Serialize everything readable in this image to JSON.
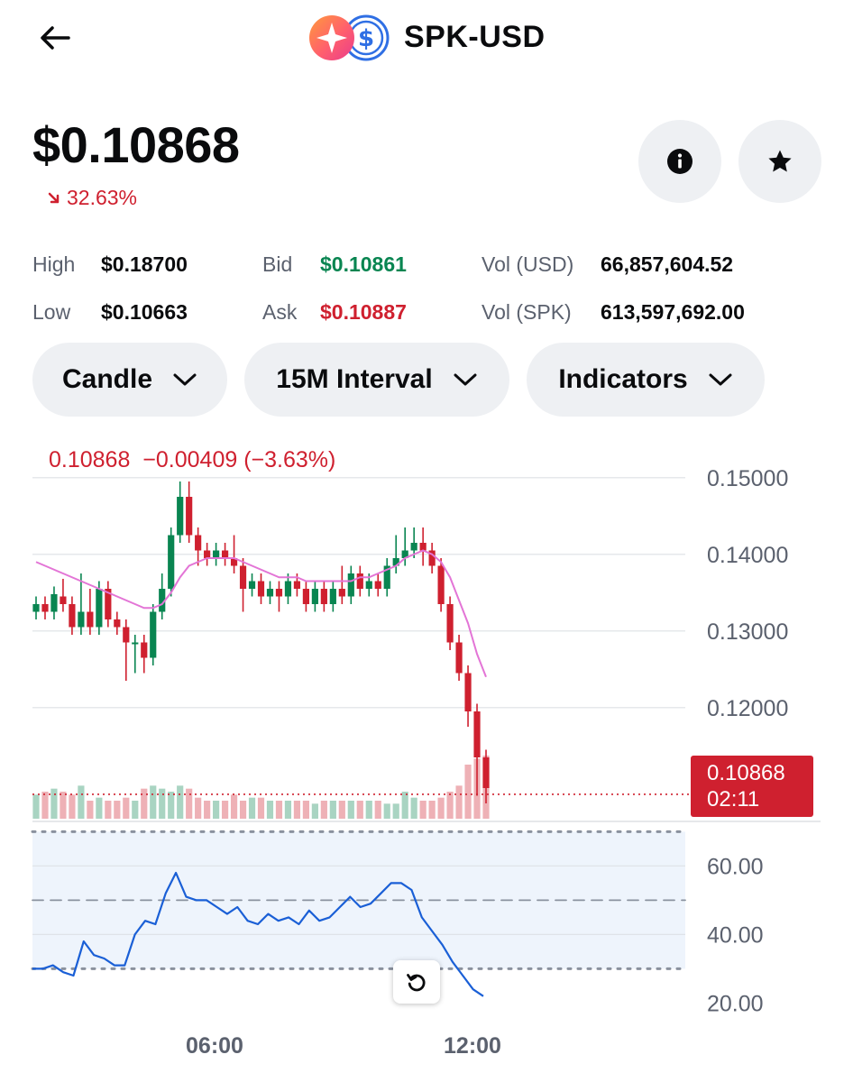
{
  "header": {
    "title": "SPK-USD",
    "back_icon": "arrow-left-icon",
    "coin_icons": [
      "spk-star-icon",
      "usdc-dollar-icon"
    ]
  },
  "summary": {
    "price": "$0.10868",
    "change": "32.63%",
    "change_direction": "down",
    "info_icon": "info-icon",
    "favorite_icon": "star-icon"
  },
  "stats": {
    "high_label": "High",
    "high_value": "$0.18700",
    "low_label": "Low",
    "low_value": "$0.10663",
    "bid_label": "Bid",
    "bid_value": "$0.10861",
    "ask_label": "Ask",
    "ask_value": "$0.10887",
    "vol_usd_label": "Vol (USD)",
    "vol_usd_value": "66,857,604.52",
    "vol_spk_label": "Vol (SPK)",
    "vol_spk_value": "613,597,692.00"
  },
  "controls": {
    "chart_type": "Candle",
    "interval": "15M Interval",
    "indicators": "Indicators"
  },
  "colors": {
    "up": "#098551",
    "down": "#cf202f",
    "ma_line": "#e375d6",
    "rsi_line": "#1a5fd6",
    "rsi_band": "#eef4fc"
  },
  "chart_data": [
    {
      "type": "candlestick",
      "ohlc_line": {
        "price": "0.10868",
        "change": "−0.00409",
        "percent": "(−3.63%)"
      },
      "y_ticks": [
        "0.15000",
        "0.14000",
        "0.13000",
        "0.12000"
      ],
      "ylim": [
        0.1055,
        0.1535
      ],
      "x_ticks": [
        "06:00",
        "12:00"
      ],
      "last_price_label": "0.10868",
      "countdown": "02:11",
      "candles": [
        [
          0.1325,
          0.1335,
          0.1315,
          0.1345
        ],
        [
          0.1335,
          0.1325,
          0.1315,
          0.1345
        ],
        [
          0.1325,
          0.1348,
          0.1315,
          0.1358
        ],
        [
          0.1345,
          0.1335,
          0.1325,
          0.1368
        ],
        [
          0.1335,
          0.1305,
          0.1295,
          0.1345
        ],
        [
          0.1305,
          0.1325,
          0.1295,
          0.1375
        ],
        [
          0.1325,
          0.1305,
          0.1295,
          0.1355
        ],
        [
          0.1305,
          0.1355,
          0.1295,
          0.1365
        ],
        [
          0.1355,
          0.1315,
          0.1305,
          0.1365
        ],
        [
          0.1315,
          0.1305,
          0.1295,
          0.1325
        ],
        [
          0.1305,
          0.1285,
          0.1235,
          0.1315
        ],
        [
          0.1285,
          0.1285,
          0.1245,
          0.1295
        ],
        [
          0.1285,
          0.1265,
          0.1245,
          0.1295
        ],
        [
          0.1265,
          0.1325,
          0.1255,
          0.1335
        ],
        [
          0.1325,
          0.1355,
          0.1315,
          0.1375
        ],
        [
          0.1355,
          0.1425,
          0.1345,
          0.1435
        ],
        [
          0.1425,
          0.1475,
          0.1415,
          0.1495
        ],
        [
          0.1475,
          0.1425,
          0.1415,
          0.1495
        ],
        [
          0.1425,
          0.1405,
          0.1385,
          0.1435
        ],
        [
          0.1405,
          0.1395,
          0.1385,
          0.1415
        ],
        [
          0.1395,
          0.1405,
          0.1385,
          0.1415
        ],
        [
          0.1405,
          0.1395,
          0.1385,
          0.1415
        ],
        [
          0.1395,
          0.1385,
          0.1375,
          0.1425
        ],
        [
          0.1385,
          0.1355,
          0.1325,
          0.1395
        ],
        [
          0.1355,
          0.1365,
          0.1345,
          0.1375
        ],
        [
          0.1365,
          0.1345,
          0.1335,
          0.1375
        ],
        [
          0.1345,
          0.1355,
          0.1335,
          0.1365
        ],
        [
          0.1355,
          0.1345,
          0.1325,
          0.1365
        ],
        [
          0.1345,
          0.1365,
          0.1335,
          0.1375
        ],
        [
          0.1365,
          0.1355,
          0.1345,
          0.1375
        ],
        [
          0.1355,
          0.1335,
          0.1325,
          0.1365
        ],
        [
          0.1335,
          0.1355,
          0.1325,
          0.1365
        ],
        [
          0.1355,
          0.1335,
          0.1325,
          0.1365
        ],
        [
          0.1335,
          0.1355,
          0.1325,
          0.1365
        ],
        [
          0.1355,
          0.1345,
          0.1335,
          0.1385
        ],
        [
          0.1345,
          0.1375,
          0.1335,
          0.1385
        ],
        [
          0.1375,
          0.1355,
          0.1345,
          0.1385
        ],
        [
          0.1355,
          0.1365,
          0.1345,
          0.1375
        ],
        [
          0.1365,
          0.1355,
          0.1345,
          0.1375
        ],
        [
          0.1355,
          0.1385,
          0.1345,
          0.1395
        ],
        [
          0.1385,
          0.1395,
          0.1375,
          0.1425
        ],
        [
          0.1395,
          0.1405,
          0.1385,
          0.1435
        ],
        [
          0.1405,
          0.1415,
          0.1395,
          0.1435
        ],
        [
          0.1415,
          0.1405,
          0.1385,
          0.1435
        ],
        [
          0.1405,
          0.1385,
          0.1375,
          0.1415
        ],
        [
          0.1385,
          0.1335,
          0.1325,
          0.1395
        ],
        [
          0.1335,
          0.1285,
          0.1275,
          0.1345
        ],
        [
          0.1285,
          0.1245,
          0.1235,
          0.1295
        ],
        [
          0.1245,
          0.1195,
          0.1175,
          0.1255
        ],
        [
          0.1195,
          0.1135,
          0.1085,
          0.1205
        ],
        [
          0.1135,
          0.1095,
          0.1075,
          0.1145
        ]
      ],
      "volumes": [
        0.4,
        0.45,
        0.5,
        0.45,
        0.4,
        0.55,
        0.3,
        0.35,
        0.3,
        0.3,
        0.35,
        0.3,
        0.5,
        0.55,
        0.5,
        0.45,
        0.55,
        0.5,
        0.35,
        0.3,
        0.3,
        0.3,
        0.4,
        0.3,
        0.35,
        0.35,
        0.3,
        0.3,
        0.3,
        0.3,
        0.3,
        0.25,
        0.3,
        0.3,
        0.3,
        0.3,
        0.3,
        0.3,
        0.3,
        0.25,
        0.25,
        0.45,
        0.35,
        0.3,
        0.3,
        0.35,
        0.45,
        0.55,
        0.9,
        1.0,
        1.05
      ],
      "moving_average": [
        0.139,
        0.1385,
        0.138,
        0.1375,
        0.137,
        0.1365,
        0.136,
        0.1355,
        0.135,
        0.1345,
        0.134,
        0.1335,
        0.133,
        0.133,
        0.1335,
        0.135,
        0.137,
        0.1385,
        0.139,
        0.1395,
        0.1395,
        0.1395,
        0.1395,
        0.139,
        0.1385,
        0.138,
        0.1375,
        0.137,
        0.137,
        0.137,
        0.1365,
        0.1365,
        0.1365,
        0.1365,
        0.1365,
        0.1365,
        0.137,
        0.137,
        0.1375,
        0.138,
        0.1385,
        0.1395,
        0.14,
        0.1405,
        0.14,
        0.139,
        0.137,
        0.134,
        0.131,
        0.127,
        0.124
      ]
    },
    {
      "type": "line",
      "indicator": "RSI",
      "y_ticks": [
        "60.00",
        "40.00",
        "20.00"
      ],
      "ylim": [
        18,
        68
      ],
      "reference_lines": [
        70,
        50,
        30
      ],
      "values": [
        30,
        30,
        31,
        29,
        28,
        38,
        34,
        33,
        31,
        31,
        40,
        44,
        43,
        52,
        58,
        51,
        50,
        50,
        48,
        46,
        48,
        44,
        43,
        46,
        44,
        45,
        43,
        47,
        44,
        45,
        48,
        51,
        48,
        49,
        52,
        55,
        55,
        53,
        45,
        41,
        37,
        32,
        28,
        24,
        22
      ]
    }
  ]
}
